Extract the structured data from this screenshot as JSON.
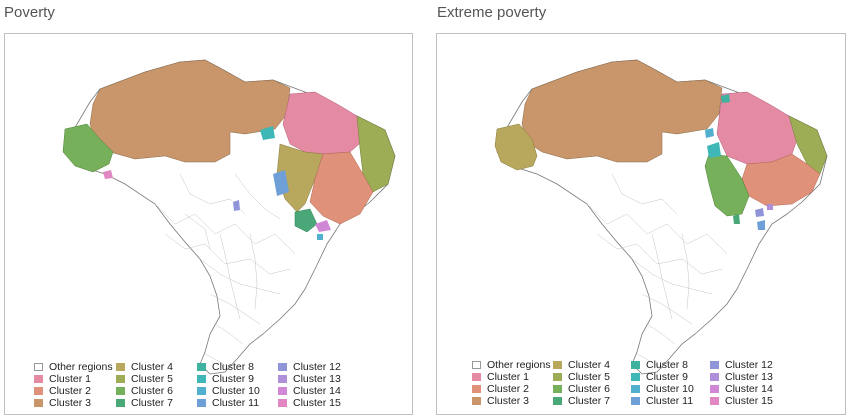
{
  "panels": [
    {
      "title": "Poverty",
      "legend": [
        {
          "label": "Other regions",
          "color": "#ffffff"
        },
        {
          "label": "Cluster 1",
          "color": "#e58aa3"
        },
        {
          "label": "Cluster 2",
          "color": "#e0917a"
        },
        {
          "label": "Cluster 3",
          "color": "#c8966a"
        },
        {
          "label": "Cluster 4",
          "color": "#b7a85e"
        },
        {
          "label": "Cluster 5",
          "color": "#9cad56"
        },
        {
          "label": "Cluster 6",
          "color": "#77b05a"
        },
        {
          "label": "Cluster 7",
          "color": "#4aa878"
        },
        {
          "label": "Cluster 8",
          "color": "#3fb2a0"
        },
        {
          "label": "Cluster 9",
          "color": "#3fb7b7"
        },
        {
          "label": "Cluster 10",
          "color": "#52b0cf"
        },
        {
          "label": "Cluster 11",
          "color": "#6e9fd6"
        },
        {
          "label": "Cluster 12",
          "color": "#8f95d8"
        },
        {
          "label": "Cluster 13",
          "color": "#b08fd9"
        },
        {
          "label": "Cluster 14",
          "color": "#d088d6"
        },
        {
          "label": "Cluster 15",
          "color": "#e187c3"
        }
      ]
    },
    {
      "title": "Extreme poverty",
      "legend": [
        {
          "label": "Other regions",
          "color": "#ffffff"
        },
        {
          "label": "Cluster 1",
          "color": "#e58aa3"
        },
        {
          "label": "Cluster 2",
          "color": "#e0917a"
        },
        {
          "label": "Cluster 3",
          "color": "#c8966a"
        },
        {
          "label": "Cluster 4",
          "color": "#b7a85e"
        },
        {
          "label": "Cluster 5",
          "color": "#9cad56"
        },
        {
          "label": "Cluster 6",
          "color": "#77b05a"
        },
        {
          "label": "Cluster 7",
          "color": "#4aa878"
        },
        {
          "label": "Cluster 8",
          "color": "#3fb2a0"
        },
        {
          "label": "Cluster 9",
          "color": "#3fb7b7"
        },
        {
          "label": "Cluster 10",
          "color": "#52b0cf"
        },
        {
          "label": "Cluster 11",
          "color": "#6e9fd6"
        },
        {
          "label": "Cluster 12",
          "color": "#8f95d8"
        },
        {
          "label": "Cluster 13",
          "color": "#b08fd9"
        },
        {
          "label": "Cluster 14",
          "color": "#d088d6"
        },
        {
          "label": "Cluster 15",
          "color": "#e187c3"
        }
      ]
    }
  ],
  "map_fill": {
    "brazil_outline": "#ffffff",
    "municipality_lines": "#9a9a9a"
  }
}
